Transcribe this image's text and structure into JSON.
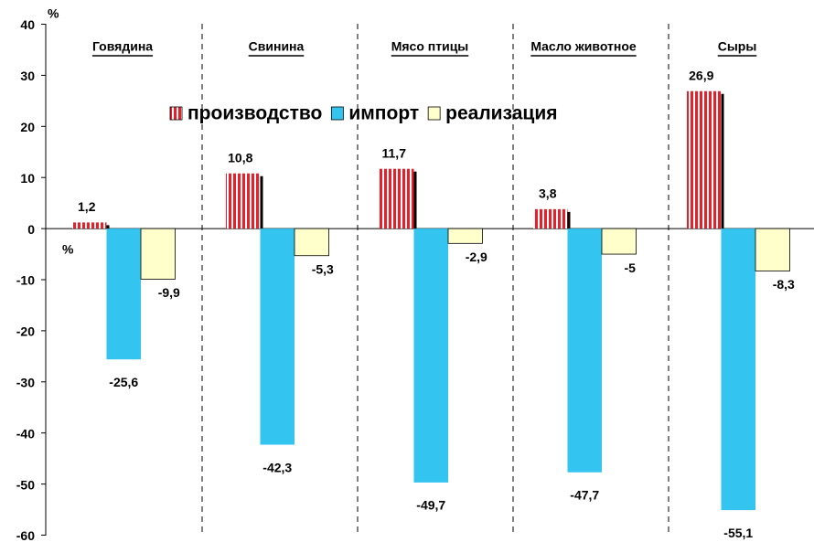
{
  "chart_data": {
    "type": "bar",
    "ylabel": "%",
    "annotations": [
      "%"
    ],
    "categories": [
      "Говядина",
      "Свинина",
      "Мясо птицы",
      "Масло животное",
      "Сыры"
    ],
    "series": [
      {
        "name": "производство",
        "color": "#e8202a",
        "values": [
          1.2,
          10.8,
          11.7,
          3.8,
          26.9
        ],
        "value_labels": [
          "1,2",
          "10,8",
          "11,7",
          "3,8",
          "26,9"
        ]
      },
      {
        "name": "импорт",
        "color": "#33c4f0",
        "values": [
          -25.6,
          -42.3,
          -49.7,
          -47.7,
          -55.1
        ],
        "value_labels": [
          "-25,6",
          "-42,3",
          "-49,7",
          "-47,7",
          "-55,1"
        ]
      },
      {
        "name": "реализация",
        "color": "#ffffcc",
        "values": [
          -9.9,
          -5.3,
          -2.9,
          -5,
          -8.3
        ],
        "value_labels": [
          "-9,9",
          "-5,3",
          "-2,9",
          "-5",
          "-8,3"
        ]
      }
    ],
    "ylim": [
      -60,
      40
    ],
    "yticks": [
      -60,
      -50,
      -40,
      -30,
      -20,
      -10,
      0,
      10,
      20,
      30,
      40
    ]
  }
}
